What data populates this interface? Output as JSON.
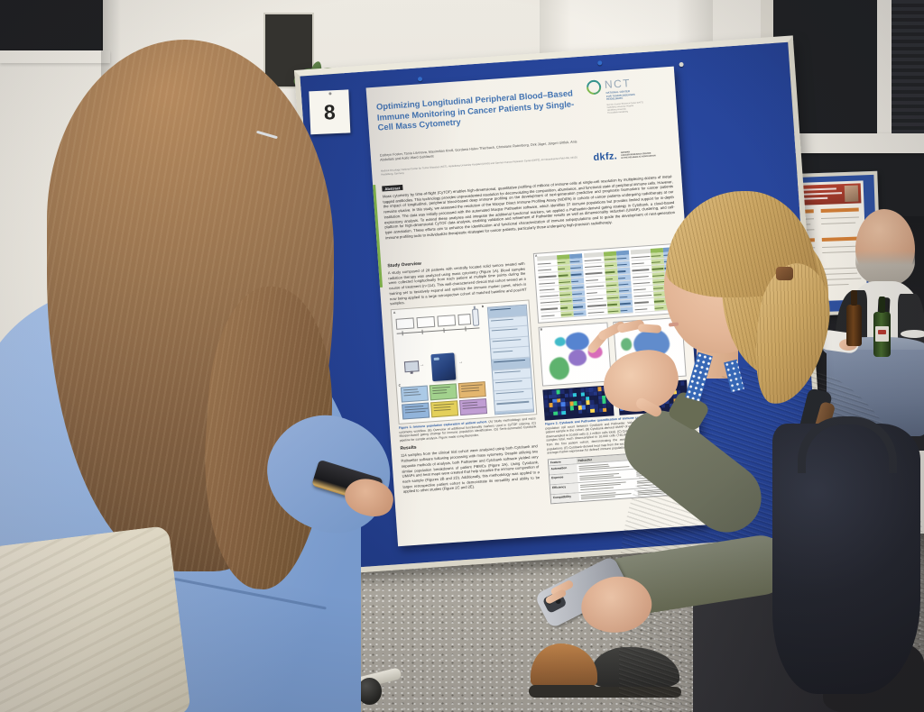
{
  "poster": {
    "board_number": "8",
    "title": "Optimizing Longitudinal Peripheral Blood–Based Immune Monitoring in Cancer Patients by Single-Cell Mass Cytometry",
    "authors": "Cathryn Foster, Tania Litvinova, Maximilian Knoll, Gordana Halec-Thierbach, Christiane Rutenberg, Dirk Jäger, Jürgen Uittluk, Anis Abdollahi and Aoife Ward Gahlawat",
    "affiliations": "Medical Oncology, National Center for Tumor Diseases (NCT), Heidelberg University Hospital (UKHD) and German Cancer Research Center (DKFZ), Im Neuenheimer Feld 460, 69120 Heidelberg, Germany",
    "logos": {
      "nct": {
        "acronym": "NCT",
        "lines": "NATIONAL CENTER\nFOR TUMOR DISEASES\nHEIDELBERG",
        "partners": "German Cancer Research Center (DKFZ)\nHeidelberg University Hospital\nHeidelberg University\nThoraxklinik Heidelberg"
      },
      "dkfz": {
        "wordmark": "dkfz.",
        "subtitle": "GERMAN\nCANCER RESEARCH CENTER\nIN THE HELMHOLTZ ASSOCIATION"
      }
    },
    "abstract_label": "Abstract",
    "abstract_text": "Mass cytometry by time-of-flight (CyTOF) enables high-dimensional, quantitative profiling of millions of immune cells at single-cell resolution by multiplexing dozens of metal-tagged antibodies. This technology provides unprecedented resolution for deconvoluting the composition, abundance, and functional state of peripheral immune cells. However, the impact of longitudinal, peripheral blood-based deep immune profiling on the development of next-generation predictive and prognostic biomarkers for cancer patients remains elusive. In this study, we assessed the resolution of the Maxpar Direct Immune Profiling Assay (MDIPA) in cohorts of cancer patients undergoing radiotherapy at our institution. The data was initially processed with the automated Maxpar Pathsetter software, which identifies 37 immune populations but provides limited support for in-depth exploratory analysis. To extend these analyses and integrate the additional functional markers, we applied a Pathsetter-derived gating strategy in Cytobank, a cloud-based platform for high-dimensional CyTOF data analysis, enabling validation and refinement of Pathsetter results as well as dimensionality reduction (UMAP), clustering, and cell-type annotation. These efforts aim to enhance the identification and functional characterization of immune subpopulations and to guide the development of next-generation immune profiling tools to individualize therapeutic strategies for cancer patients, particularly those undergoing high-precision radiotherapy.",
    "study_overview_heading": "Study Overview",
    "study_overview_text": "A study composed of 28 patients with centrally located solid tumors treated with radiation therapy was analyzed using mass cytometry (Figure 1A). Blood samples were collected longitudinally from each patient at multiple time points during the course of treatment (n=114). This well-characterized clinical trial cohort served as a training set to iteratively expand and optimize the immune marker panel, which is now being applied to a large retrospective cohort of matched baseline and post-RT samples.",
    "results_heading": "Results",
    "results_text": "114 samples from the clinical trial cohort were analyzed using both Cytobank and Pathsetter software following processing with mass cytometry. Despite utilizing two separate methods of analysis, both Pathsetter and Cytobank software yielded very similar population breakdowns of patient PBMCs (Figure 2A). Using Cytobank, UMAPs and heat maps were created that help visualize the immune composition of each sample (Figures 2B and 2D). Additionally, this methodology was applied to a larger retrospective patient cohort to demonstrate its versatility and ability to be applied to other studies (Figure 2C and 2E).",
    "figure1_caption_lead": "Figure 1: Immune population exploration of patient cohort.",
    "figure1_caption_rest": " (A) Study methodology and mass cytometry workflow. (B) Overview of additional functionality markers used in CyTOF staining. (C) Maxpar-based gating strategy for immune population identification. (D) Semi-automated Cytobank pipeline for sample analysis. Figure made using Biorender.",
    "figure2_caption_lead": "Figure 2: Cytobank and Pathsetter quantification of immune composition.",
    "figure2_caption_rest": " (A) Direct comparison of population cell count between Cytobank and Pathsetter. Values were taken from one representative patient sample in the cohort. (B) Cytobank-derived UMAP of entire patient cohort. 114 samples total, each downsampled to 10,000 cells (1.1 million cells total). (C) Cytobank-derived UMAP of a validation cohort. 74 samples total, each downsampled to 10,000 cells (740,000 cells total). (D) Cytobank-derived heat map from the first patient cohort, demonstrating the average marker expression for defined immune populations. (E) Cytobank-derived heat map from the second (validation) patient cohort, demonstrating the average marker expression for defined immune populations.",
    "figure_letters": {
      "a": "A",
      "b": "B",
      "c": "C",
      "d": "D",
      "e": "E"
    },
    "comparison_table": {
      "header_left": "Feature",
      "col_pathsetter": "Pathsetter",
      "col_cytobank": "Cytobank",
      "rows": [
        "Automation",
        "Expense",
        "Efficiency",
        "Compatibility"
      ]
    }
  },
  "decor": {
    "fig2a": {
      "green_head": "#8fb953",
      "blue_head": "#6d97c8",
      "green_cell": "#c9dd9f",
      "blue_cell": "#adc8e8",
      "groups": 3,
      "rows": 9
    },
    "heatmap": {
      "dark": [
        "#101b4d",
        "#16246b",
        "#0d1540",
        "#1b2f80"
      ],
      "bright": [
        "#2ad17a",
        "#ffd84d",
        "#27c7dd",
        "#3f79e8",
        "#e8a030"
      ],
      "cols": 16,
      "rows": 6
    },
    "fig1_grid_colors": [
      "#a9c9e8",
      "#9ed08a",
      "#e2b36b",
      "#8fb3dc",
      "#e3cf55",
      "#bd9ad3"
    ]
  },
  "colors": {
    "board_blue": "#1d3c94",
    "frame_cream": "#d9d5c8",
    "paper": "#f4f1ea",
    "title_blue": "#3c6fb0",
    "attendee_shirt": "#8cabd9",
    "attendee_hair": "#7c5a3c",
    "presenter_sweater": "#6d715f",
    "presenter_hair": "#c9a35f",
    "lanyard_blue": "#2f62b4",
    "bag_black": "#1c1f29",
    "carpet": "#a5a199"
  }
}
